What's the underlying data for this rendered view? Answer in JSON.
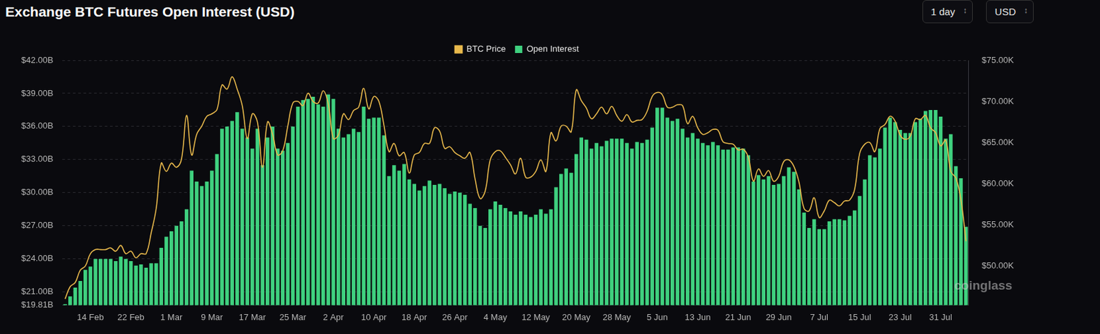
{
  "chart_data": {
    "type": "bar",
    "title": "Exchange BTC Futures Open Interest (USD)",
    "controls": [
      "1 day",
      "USD"
    ],
    "watermark": "coinglass",
    "categories": [
      null,
      null,
      null,
      null,
      null,
      "14 Feb",
      null,
      null,
      null,
      null,
      null,
      null,
      null,
      "22 Feb",
      null,
      null,
      null,
      null,
      null,
      null,
      null,
      "1 Mar",
      null,
      null,
      null,
      null,
      null,
      null,
      null,
      "9 Mar",
      null,
      null,
      null,
      null,
      null,
      null,
      null,
      "17 Mar",
      null,
      null,
      null,
      null,
      null,
      null,
      null,
      "25 Mar",
      null,
      null,
      null,
      null,
      null,
      null,
      null,
      "2 Apr",
      null,
      null,
      null,
      null,
      null,
      null,
      null,
      "10 Apr",
      null,
      null,
      null,
      null,
      null,
      null,
      null,
      "18 Apr",
      null,
      null,
      null,
      null,
      null,
      null,
      null,
      "26 Apr",
      null,
      null,
      null,
      null,
      null,
      null,
      null,
      "4 May",
      null,
      null,
      null,
      null,
      null,
      null,
      null,
      "12 May",
      null,
      null,
      null,
      null,
      null,
      null,
      null,
      "20 May",
      null,
      null,
      null,
      null,
      null,
      null,
      null,
      "28 May",
      null,
      null,
      null,
      null,
      null,
      null,
      null,
      "5 Jun",
      null,
      null,
      null,
      null,
      null,
      null,
      null,
      "13 Jun",
      null,
      null,
      null,
      null,
      null,
      null,
      null,
      "21 Jun",
      null,
      null,
      null,
      null,
      null,
      null,
      null,
      "29 Jun",
      null,
      null,
      null,
      null,
      null,
      null,
      null,
      "7 Jul",
      null,
      null,
      null,
      null,
      null,
      null,
      null,
      "15 Jul",
      null,
      null,
      null,
      null,
      null,
      null,
      null,
      "23 Jul",
      null,
      null,
      null,
      null,
      null,
      null,
      null,
      "31 Jul",
      null,
      null,
      null,
      null,
      null
    ],
    "series": [
      {
        "name": "BTC Price",
        "type": "line",
        "color": "#e8b94c",
        "axis": "y2",
        "values": [
          46.0,
          47.5,
          48.0,
          49.5,
          50.0,
          51.5,
          52.0,
          52.0,
          52.0,
          52.2,
          51.8,
          52.5,
          51.5,
          51.8,
          51.0,
          51.5,
          51.5,
          54.0,
          57.0,
          62.5,
          61.5,
          62.5,
          62.0,
          63.0,
          68.3,
          63.5,
          66.0,
          67.0,
          68.2,
          68.5,
          69.0,
          72.0,
          71.5,
          73.0,
          71.5,
          69.5,
          65.5,
          68.5,
          67.5,
          62.0,
          67.5,
          66.0,
          63.5,
          64.0,
          67.0,
          69.8,
          70.0,
          69.5,
          71.0,
          70.0,
          69.8,
          71.3,
          69.7,
          65.5,
          65.9,
          68.5,
          67.8,
          68.9,
          69.3,
          71.6,
          69.1,
          70.6,
          70.0,
          67.1,
          63.9,
          64.9,
          63.4,
          63.8,
          61.3,
          63.5,
          63.8,
          64.9,
          64.9,
          66.8,
          66.4,
          64.3,
          64.5,
          63.8,
          63.4,
          63.1,
          63.8,
          60.6,
          58.2,
          59.1,
          62.9,
          63.9,
          64.0,
          63.2,
          62.3,
          61.2,
          63.1,
          60.8,
          60.8,
          61.5,
          62.9,
          61.5,
          66.2,
          65.2,
          67.0,
          67.0,
          66.3,
          71.4,
          70.1,
          69.2,
          67.9,
          68.5,
          69.3,
          68.5,
          69.4,
          68.3,
          67.6,
          68.4,
          67.5,
          67.7,
          67.8,
          68.8,
          70.6,
          71.1,
          70.8,
          69.3,
          69.3,
          69.6,
          69.5,
          67.3,
          68.2,
          66.8,
          66.0,
          66.2,
          66.6,
          66.5,
          65.1,
          64.9,
          64.8,
          64.1,
          64.2,
          63.2,
          60.3,
          61.8,
          60.9,
          61.6,
          60.3,
          60.9,
          62.7,
          62.9,
          62.1,
          60.2,
          57.0,
          56.7,
          58.3,
          55.9,
          56.7,
          58.0,
          57.7,
          57.3,
          57.9,
          58.0,
          59.3,
          63.7,
          64.8,
          65.0,
          63.9,
          66.7,
          67.2,
          68.2,
          67.6,
          65.9,
          65.4,
          65.8,
          67.9,
          67.8,
          68.3,
          66.8,
          66.2,
          64.6,
          65.3,
          61.5,
          60.7,
          58.1,
          53.0
        ]
      },
      {
        "name": "Open Interest",
        "type": "bar",
        "color": "#3fd17f",
        "values": [
          19.9,
          20.6,
          21.4,
          22.0,
          23.0,
          23.3,
          24.0,
          24.0,
          24.0,
          24.0,
          23.8,
          24.2,
          24.0,
          23.8,
          23.4,
          23.5,
          23.2,
          23.6,
          23.6,
          25.0,
          26.0,
          26.5,
          27.0,
          27.4,
          28.5,
          32.0,
          31.0,
          30.6,
          31.0,
          32.0,
          33.5,
          35.8,
          36.0,
          36.5,
          37.3,
          35.8,
          35.0,
          34.0,
          35.8,
          32.5,
          35.0,
          36.0,
          34.0,
          33.8,
          34.5,
          36.0,
          37.8,
          38.4,
          38.5,
          38.7,
          38.0,
          37.8,
          38.9,
          38.5,
          35.8,
          35.0,
          35.3,
          35.8,
          35.5,
          37.8,
          36.7,
          36.8,
          36.8,
          35.2,
          31.5,
          32.5,
          32.0,
          32.6,
          31.2,
          30.8,
          30.2,
          30.6,
          31.1,
          30.7,
          30.8,
          30.4,
          29.9,
          30.1,
          30.0,
          29.8,
          29.0,
          28.6,
          27.0,
          26.8,
          28.5,
          29.2,
          28.9,
          28.6,
          28.3,
          28.0,
          28.3,
          28.0,
          27.8,
          28.0,
          28.5,
          28.1,
          28.5,
          30.5,
          31.7,
          32.2,
          31.8,
          33.5,
          35.0,
          34.8,
          34.0,
          34.5,
          34.2,
          34.7,
          34.9,
          34.9,
          34.9,
          34.5,
          34.0,
          34.6,
          34.5,
          34.8,
          35.9,
          37.7,
          37.7,
          36.8,
          36.5,
          36.7,
          35.8,
          35.0,
          35.4,
          34.9,
          34.5,
          34.3,
          34.6,
          34.3,
          33.9,
          33.9,
          34.1,
          34.1,
          34.0,
          33.4,
          31.0,
          31.6,
          31.2,
          31.5,
          30.7,
          30.8,
          31.5,
          32.3,
          31.9,
          30.3,
          28.2,
          26.8,
          27.6,
          26.7,
          26.7,
          27.4,
          27.6,
          27.6,
          27.5,
          27.9,
          28.4,
          29.7,
          31.2,
          33.4,
          33.2,
          34.0,
          35.9,
          36.8,
          36.4,
          35.7,
          35.4,
          35.4,
          36.4,
          36.7,
          37.4,
          37.5,
          37.5,
          36.9,
          34.9,
          35.3,
          32.4,
          31.3,
          26.9
        ]
      }
    ],
    "ylim": [
      19.81,
      42
    ],
    "yticks": [
      {
        "value": 19.81,
        "label": "$19.81B"
      },
      {
        "value": 21,
        "label": "$21.00B"
      },
      {
        "value": 24,
        "label": "$24.00B"
      },
      {
        "value": 27,
        "label": "$27.00B"
      },
      {
        "value": 30,
        "label": "$30.00B"
      },
      {
        "value": 33,
        "label": "$33.00B"
      },
      {
        "value": 36,
        "label": "$36.00B"
      },
      {
        "value": 39,
        "label": "$39.00B"
      },
      {
        "value": 42,
        "label": "$42.00B"
      }
    ],
    "y2lim": [
      45.25,
      75
    ],
    "y2ticks": [
      {
        "value": 50,
        "label": "$50.00K"
      },
      {
        "value": 55,
        "label": "$55.00K"
      },
      {
        "value": 60,
        "label": "$60.00K"
      },
      {
        "value": 65,
        "label": "$65.00K"
      },
      {
        "value": 70,
        "label": "$70.00K"
      },
      {
        "value": 75,
        "label": "$75.00K"
      }
    ],
    "grid": true,
    "legend": "top"
  }
}
